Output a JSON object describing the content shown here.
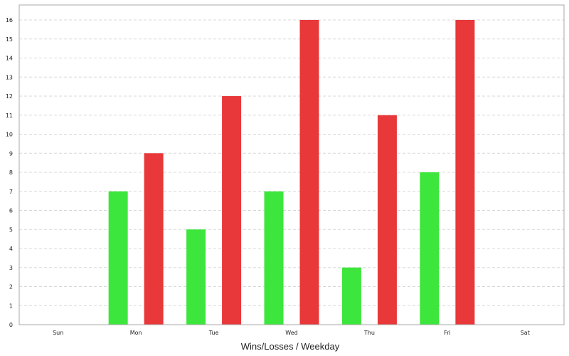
{
  "chart_data": {
    "type": "bar",
    "title": "",
    "xlabel": "Wins/Losses / Weekday",
    "ylabel": "",
    "categories": [
      "Sun",
      "Mon",
      "Tue",
      "Wed",
      "Thu",
      "Fri",
      "Sat"
    ],
    "series": [
      {
        "color": "#3ce63c",
        "values": [
          0,
          7,
          5,
          7,
          3,
          8,
          0
        ]
      },
      {
        "color": "#e8383a",
        "values": [
          0,
          9,
          12,
          16,
          11,
          16,
          0
        ]
      }
    ],
    "ylim": [
      0,
      16
    ],
    "yticks": [
      0,
      1,
      2,
      3,
      4,
      5,
      6,
      7,
      8,
      9,
      10,
      11,
      12,
      13,
      14,
      15,
      16
    ],
    "grid": true,
    "legend": "none"
  }
}
